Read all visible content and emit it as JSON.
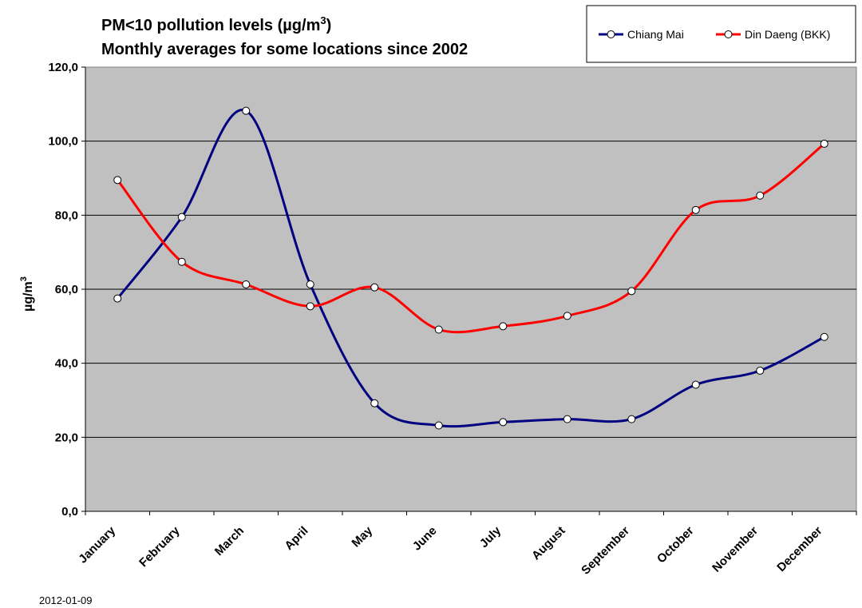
{
  "chart_data": {
    "type": "line",
    "title_line1": "PM<10 pollution levels (µg/m",
    "title_sup": "3",
    "title_line1_end": ")",
    "title_line2": "Monthly averages for some locations since 2002",
    "ylabel": "µg/m",
    "ylabel_sup": "3",
    "xlabel": "",
    "ylim": [
      0,
      120
    ],
    "y_ticks": [
      "0,0",
      "20,0",
      "40,0",
      "60,0",
      "80,0",
      "100,0",
      "120,0"
    ],
    "grid": true,
    "legend_position": "top-right",
    "categories": [
      "January",
      "February",
      "March",
      "April",
      "May",
      "June",
      "July",
      "August",
      "September",
      "October",
      "November",
      "December"
    ],
    "series": [
      {
        "name": "Chiang Mai",
        "color": "#000080",
        "values": [
          57.5,
          79.5,
          108.2,
          61.3,
          29.2,
          23.2,
          24.1,
          24.9,
          24.9,
          34.2,
          38.0,
          47.1
        ]
      },
      {
        "name": "Din Daeng (BKK)",
        "color": "#ff0000",
        "values": [
          89.5,
          67.4,
          61.3,
          55.4,
          60.5,
          49.1,
          50.0,
          52.8,
          59.5,
          81.4,
          85.3,
          99.3
        ]
      }
    ]
  },
  "footer": {
    "date": "2012-01-09"
  },
  "colors": {
    "plot_background": "#c0c0c0",
    "gridline": "#000000",
    "marker_fill": "#ffffff"
  }
}
